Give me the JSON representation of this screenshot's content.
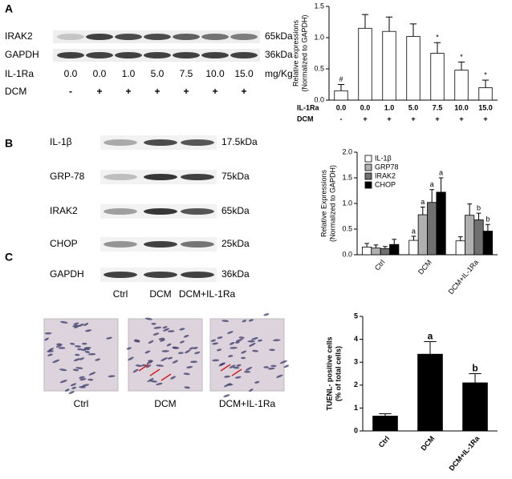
{
  "panels": [
    "A",
    "B",
    "C"
  ],
  "blot_a": {
    "rows": [
      {
        "protein": "IRAK2",
        "size": "65kDa"
      },
      {
        "protein": "GAPDH",
        "size": "36kDa"
      }
    ],
    "dose_label": "IL-1Ra",
    "doses": [
      "0.0",
      "0.0",
      "1.0",
      "5.0",
      "7.5",
      "10.0",
      "15.0"
    ],
    "dose_unit": "mg/Kg",
    "group_label": "DCM",
    "groups": [
      "-",
      "+",
      "+",
      "+",
      "+",
      "+",
      "+"
    ]
  },
  "blot_b": {
    "rows": [
      {
        "protein": "IL-1β",
        "size": "17.5kDa"
      },
      {
        "protein": "GRP-78",
        "size": "75kDa"
      },
      {
        "protein": "IRAK2",
        "size": "65kDa"
      },
      {
        "protein": "CHOP",
        "size": "25kDa"
      },
      {
        "protein": "GAPDH",
        "size": "36kDa"
      }
    ],
    "lanes": [
      "Ctrl",
      "DCM",
      "DCM+IL-1Ra"
    ]
  },
  "histology": {
    "captions": [
      "Ctrl",
      "DCM",
      "DCM+IL-1Ra"
    ]
  },
  "chart_data": [
    {
      "type": "bar",
      "ylabel": [
        "Relative expressions",
        "(Normalized to GAPDH)"
      ],
      "category_rows": [
        "IL-1Ra",
        "DCM"
      ],
      "categories": [
        "0.0",
        "0.0",
        "1.0",
        "5.0",
        "7.5",
        "10.0",
        "15.0"
      ],
      "categories2": [
        "-",
        "+",
        "+",
        "+",
        "+",
        "+",
        "+"
      ],
      "series": [
        {
          "color": "#ffffff",
          "values": [
            0.15,
            1.15,
            1.1,
            1.02,
            0.75,
            0.48,
            0.2
          ],
          "errors": [
            0.1,
            0.22,
            0.23,
            0.2,
            0.17,
            0.13,
            0.12
          ],
          "markers": [
            "#",
            null,
            null,
            null,
            "*",
            "*",
            "*"
          ]
        }
      ],
      "ylim": [
        0,
        1.5
      ],
      "yticks": [
        {
          "value": 0,
          "label": "0.0"
        },
        0.5,
        {
          "value": 1,
          "label": "1.0"
        },
        1.5
      ]
    },
    {
      "type": "bar",
      "ylabel": [
        "Relative Expressions",
        "(Normalized to GAPDH)"
      ],
      "categories": [
        "Ctrl",
        "DCM",
        "DCM+IL-1Ra"
      ],
      "series": [
        {
          "name": "IL-1β",
          "color": "#ffffff",
          "values": [
            0.15,
            0.28,
            0.27
          ],
          "errors": [
            0.07,
            0.08,
            0.08
          ],
          "markers": [
            null,
            "a",
            null
          ]
        },
        {
          "name": "GRP78",
          "color": "#b0b0b0",
          "values": [
            0.13,
            0.78,
            0.77
          ],
          "errors": [
            0.06,
            0.15,
            0.22
          ],
          "markers": [
            null,
            "a",
            null
          ]
        },
        {
          "name": "IRAK2",
          "color": "#707070",
          "values": [
            0.12,
            1.02,
            0.68
          ],
          "errors": [
            0.04,
            0.25,
            0.13
          ],
          "markers": [
            null,
            "a",
            "b"
          ]
        },
        {
          "name": "CHOP",
          "color": "#000000",
          "values": [
            0.2,
            1.22,
            0.46
          ],
          "errors": [
            0.1,
            0.28,
            0.13
          ],
          "markers": [
            null,
            "a",
            "b"
          ]
        }
      ],
      "legend": "top-left",
      "ylim": [
        0,
        2
      ],
      "yticks": [
        {
          "value": 0,
          "label": "0.0"
        },
        0.5,
        {
          "value": 1,
          "label": "1.0"
        },
        1.5,
        {
          "value": 2,
          "label": "2.0"
        }
      ]
    },
    {
      "type": "bar",
      "ylabel": [
        "TUENL- positive cells",
        "(% of total cells)"
      ],
      "categories": [
        "Ctrl",
        "DCM",
        "DCM+IL-1Ra"
      ],
      "series": [
        {
          "color": "#000000",
          "values": [
            0.65,
            3.35,
            2.1
          ],
          "errors": [
            0.1,
            0.55,
            0.4
          ],
          "markers": [
            null,
            "a",
            "b"
          ]
        }
      ],
      "ylim": [
        0,
        5
      ],
      "yticks": [
        0,
        1,
        2,
        3,
        4,
        5
      ]
    }
  ]
}
